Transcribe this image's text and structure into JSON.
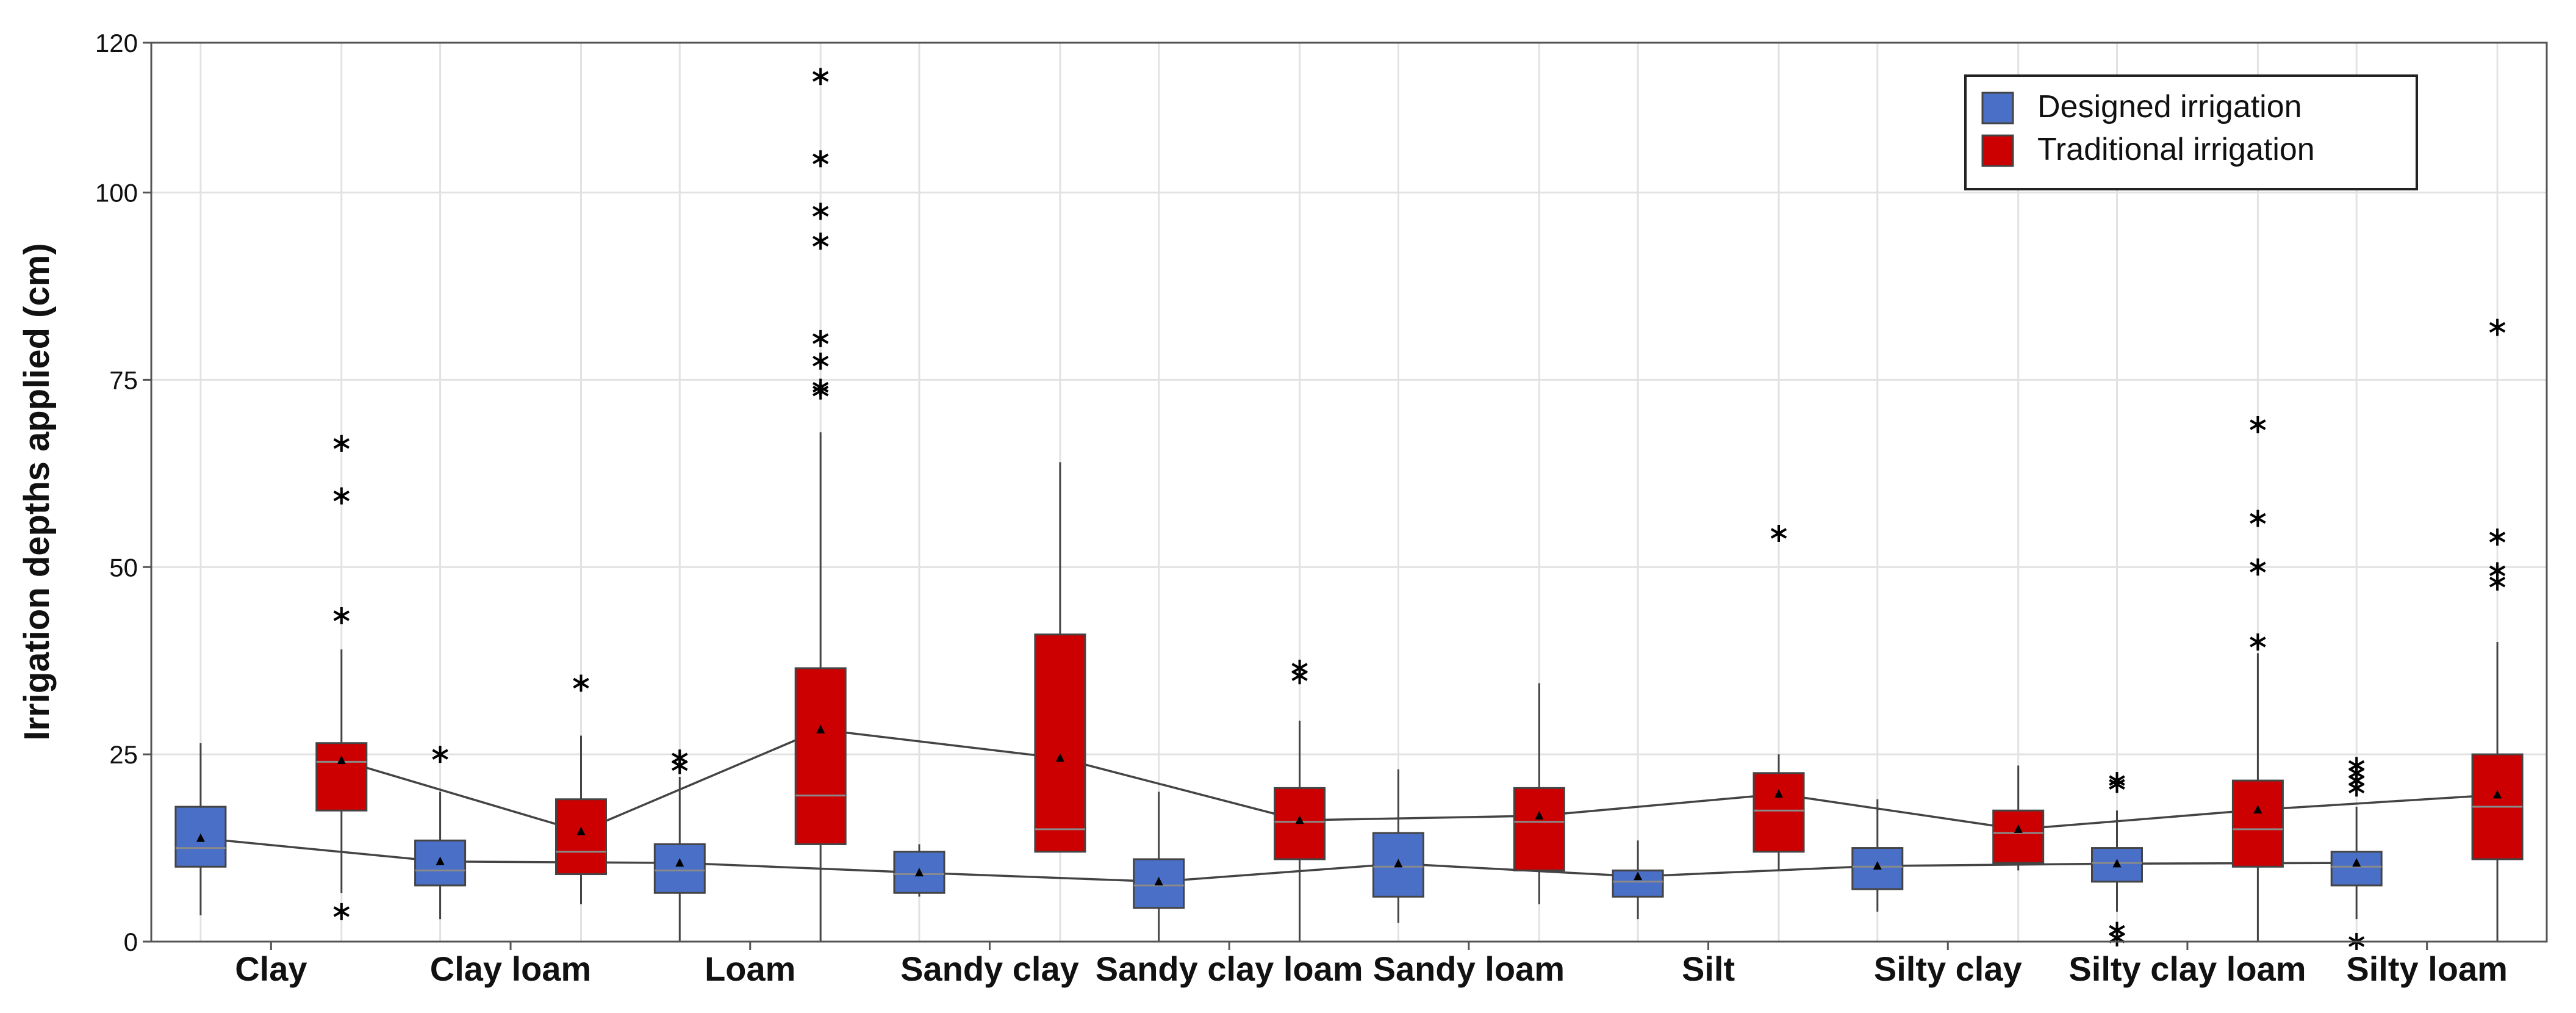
{
  "chart_data": {
    "type": "boxplot",
    "title": "",
    "xlabel": "",
    "ylabel": "Irrigation depths applied (cm)",
    "ylim": [
      0,
      120
    ],
    "yticks": [
      0,
      25,
      50,
      75,
      100,
      120
    ],
    "grid": true,
    "legend_position": "top-right",
    "categories": [
      "Clay",
      "Clay loam",
      "Loam",
      "Sandy clay",
      "Sandy clay loam",
      "Sandy loam",
      "Silt",
      "Silty clay",
      "Silty clay loam",
      "Silty loam"
    ],
    "series": [
      {
        "name": "Designed irrigation",
        "color": "#4a6fc6",
        "boxes": [
          {
            "min": 3.5,
            "q1": 10,
            "median": 12.5,
            "q3": 18,
            "max": 26.5,
            "mean": 13.8,
            "outliers": []
          },
          {
            "min": 3,
            "q1": 7.5,
            "median": 9.5,
            "q3": 13.5,
            "max": 20,
            "mean": 10.7,
            "outliers": [
              25
            ]
          },
          {
            "min": 0,
            "q1": 6.5,
            "median": 9.5,
            "q3": 13,
            "max": 22,
            "mean": 10.5,
            "outliers": [
              23.5,
              24.5
            ]
          },
          {
            "min": 6,
            "q1": 6.5,
            "median": 9,
            "q3": 12,
            "max": 13,
            "mean": 9.2,
            "outliers": []
          },
          {
            "min": 0,
            "q1": 4.5,
            "median": 7.5,
            "q3": 11,
            "max": 20,
            "mean": 8,
            "outliers": []
          },
          {
            "min": 2.5,
            "q1": 6,
            "median": 10,
            "q3": 14.5,
            "max": 23,
            "mean": 10.4,
            "outliers": []
          },
          {
            "min": 3,
            "q1": 6,
            "median": 8,
            "q3": 9.5,
            "max": 13.5,
            "mean": 8.7,
            "outliers": []
          },
          {
            "min": 4,
            "q1": 7,
            "median": 10,
            "q3": 12.5,
            "max": 19,
            "mean": 10.1,
            "outliers": []
          },
          {
            "min": 4,
            "q1": 8,
            "median": 10.5,
            "q3": 12.5,
            "max": 17.5,
            "mean": 10.4,
            "outliers": [
              0.5,
              1.5,
              21,
              21.5
            ]
          },
          {
            "min": 3,
            "q1": 7.5,
            "median": 10,
            "q3": 12,
            "max": 18,
            "mean": 10.5,
            "outliers": [
              0,
              20.5,
              21.5,
              22.5,
              23.5
            ]
          }
        ]
      },
      {
        "name": "Traditional irrigation",
        "color": "#cc0000",
        "boxes": [
          {
            "min": 6.5,
            "q1": 17.5,
            "median": 24,
            "q3": 26.5,
            "max": 39,
            "mean": 24.2,
            "outliers": [
              4,
              43.5,
              59.5,
              66.5
            ]
          },
          {
            "min": 5,
            "q1": 9,
            "median": 12,
            "q3": 19,
            "max": 27.5,
            "mean": 14.7,
            "outliers": [
              34.5
            ]
          },
          {
            "min": 0,
            "q1": 13,
            "median": 19.5,
            "q3": 36.5,
            "max": 68,
            "mean": 28.3,
            "outliers": [
              73.5,
              74,
              77.5,
              80.5,
              93.5,
              97.5,
              104.5,
              115.5
            ]
          },
          {
            "min": 12,
            "q1": 12,
            "median": 15,
            "q3": 41,
            "max": 64,
            "mean": 24.5,
            "outliers": []
          },
          {
            "min": 0,
            "q1": 11,
            "median": 16,
            "q3": 20.5,
            "max": 29.5,
            "mean": 16.2,
            "outliers": [
              35.5,
              36.5
            ]
          },
          {
            "min": 5,
            "q1": 9.5,
            "median": 16,
            "q3": 20.5,
            "max": 34.5,
            "mean": 16.8,
            "outliers": []
          },
          {
            "min": 9.5,
            "q1": 12,
            "median": 17.5,
            "q3": 22.5,
            "max": 25,
            "mean": 19.7,
            "outliers": [
              54.5
            ]
          },
          {
            "min": 9.5,
            "q1": 10.5,
            "median": 14.5,
            "q3": 17.5,
            "max": 23.5,
            "mean": 15,
            "outliers": []
          },
          {
            "min": 0,
            "q1": 10,
            "median": 15,
            "q3": 21.5,
            "max": 38.5,
            "mean": 17.6,
            "outliers": [
              40,
              50,
              56.5,
              69
            ]
          },
          {
            "min": 0,
            "q1": 11,
            "median": 18,
            "q3": 25,
            "max": 40,
            "mean": 19.6,
            "outliers": [
              48,
              49.5,
              54,
              82
            ]
          }
        ]
      }
    ]
  }
}
